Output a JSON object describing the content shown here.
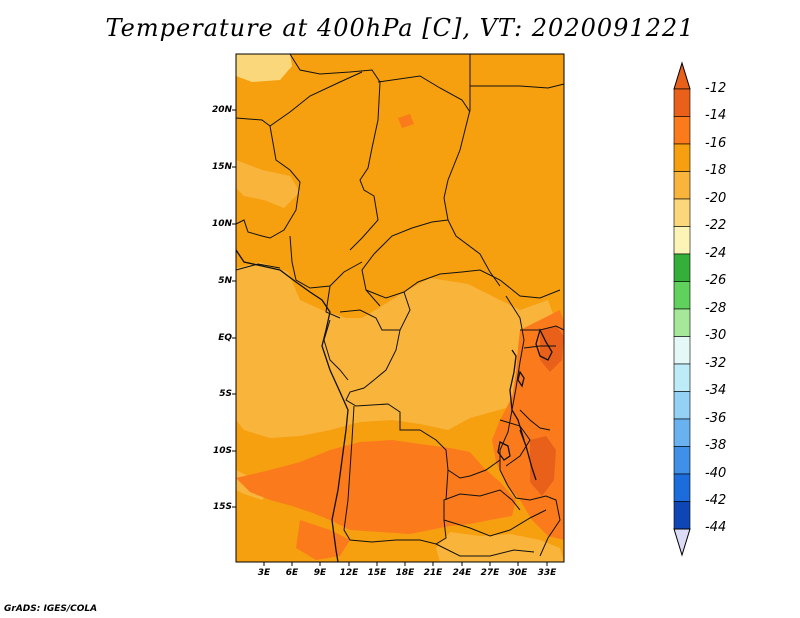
{
  "title": "Temperature at 400hPa [C], VT: 2020091221",
  "credit": "GrADS: IGES/COLA",
  "lat_labels": [
    "20N",
    "15N",
    "10N",
    "5N",
    "EQ",
    "5S",
    "10S",
    "15S"
  ],
  "lon_labels": [
    "3E",
    "6E",
    "9E",
    "12E",
    "15E",
    "18E",
    "21E",
    "24E",
    "27E",
    "30E",
    "33E"
  ],
  "colorbar": {
    "labels": [
      "-12",
      "-14",
      "-16",
      "-18",
      "-20",
      "-22",
      "-24",
      "-26",
      "-28",
      "-30",
      "-32",
      "-34",
      "-36",
      "-38",
      "-40",
      "-42",
      "-44"
    ],
    "colors": [
      "#e8601a",
      "#fb7a1c",
      "#f6a010",
      "#f9b43c",
      "#fad77a",
      "#fcf3b6",
      "#34b03a",
      "#5fd15c",
      "#a6e89a",
      "#e4f8f8",
      "#bdebf8",
      "#95d0f5",
      "#69b2ef",
      "#3f90e6",
      "#1c6ddb",
      "#0f46b5",
      "#0a1a7c"
    ],
    "top_arrow_color": "#e8601a",
    "bottom_arrow_color": "#dcdcf8"
  },
  "map_colors": {
    "minus14": "#fb7a1c",
    "minus16": "#f6a010",
    "minus18": "#f9b43c",
    "minus20": "#fad77a",
    "minus12": "#e8601a"
  }
}
